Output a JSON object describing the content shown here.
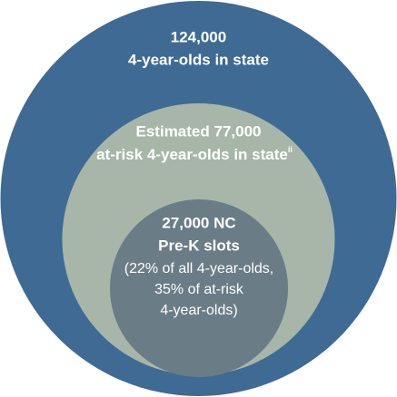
{
  "circles": {
    "outer": {
      "number": "124,000",
      "label": "4-year-olds in state"
    },
    "middle": {
      "number": "Estimated 77,000",
      "label": "at-risk 4-year-olds in state",
      "footnote": "ii"
    },
    "inner": {
      "number": "27,000 NC",
      "label": "Pre-K slots",
      "details": [
        "(22% of all 4-year-olds,",
        "35% of at-risk",
        "4-year-olds)"
      ]
    }
  }
}
